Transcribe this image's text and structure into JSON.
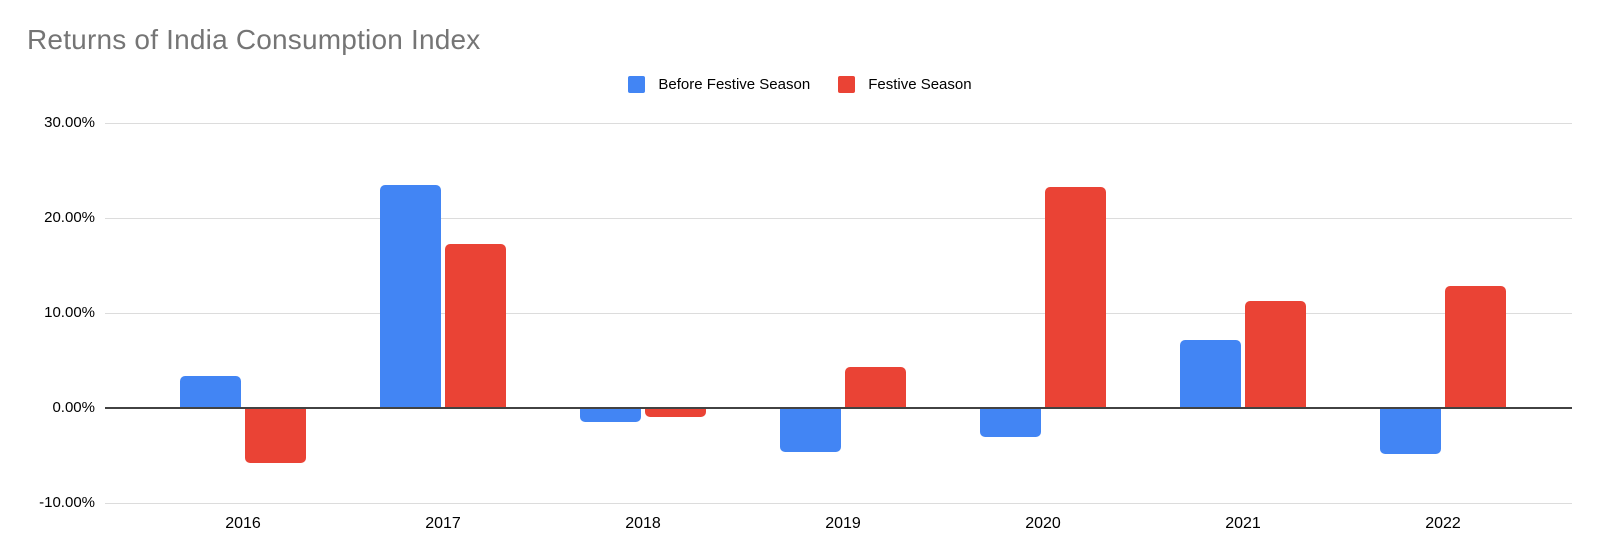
{
  "page": {
    "title": "Returns of India Consumption Index"
  },
  "legend": {
    "items": [
      {
        "label": "Before Festive Season",
        "color": "#4285F4"
      },
      {
        "label": "Festive Season",
        "color": "#EA4335"
      }
    ]
  },
  "y_axis": {
    "tick_labels": [
      "30.00%",
      "20.00%",
      "10.00%",
      "0.00%",
      "-10.00%"
    ],
    "tick_values": [
      30,
      20,
      10,
      0,
      -10
    ]
  },
  "x_axis": {
    "categories": [
      "2016",
      "2017",
      "2018",
      "2019",
      "2020",
      "2021",
      "2022"
    ]
  },
  "chart_data": {
    "type": "bar",
    "title": "Returns of India Consumption Index",
    "categories": [
      "2016",
      "2017",
      "2018",
      "2019",
      "2020",
      "2021",
      "2022"
    ],
    "series": [
      {
        "name": "Before Festive Season",
        "color": "#4285F4",
        "values": [
          3.4,
          23.5,
          -1.5,
          -4.6,
          -3.1,
          7.2,
          -4.8
        ]
      },
      {
        "name": "Festive Season",
        "color": "#EA4335",
        "values": [
          -5.8,
          17.3,
          -0.9,
          4.3,
          23.3,
          11.3,
          12.8
        ]
      }
    ],
    "xlabel": "",
    "ylabel": "",
    "ylim": [
      -13,
      32
    ],
    "y_ticks": [
      30,
      20,
      10,
      0,
      -10
    ],
    "y_tick_format": "0.00%",
    "grid": true,
    "legend_position": "top",
    "colors": {
      "title_text": "#757575",
      "axis_text": "#000000",
      "gridline": "#dcdcdc",
      "zero_line": "#424242",
      "background": "#ffffff"
    }
  }
}
